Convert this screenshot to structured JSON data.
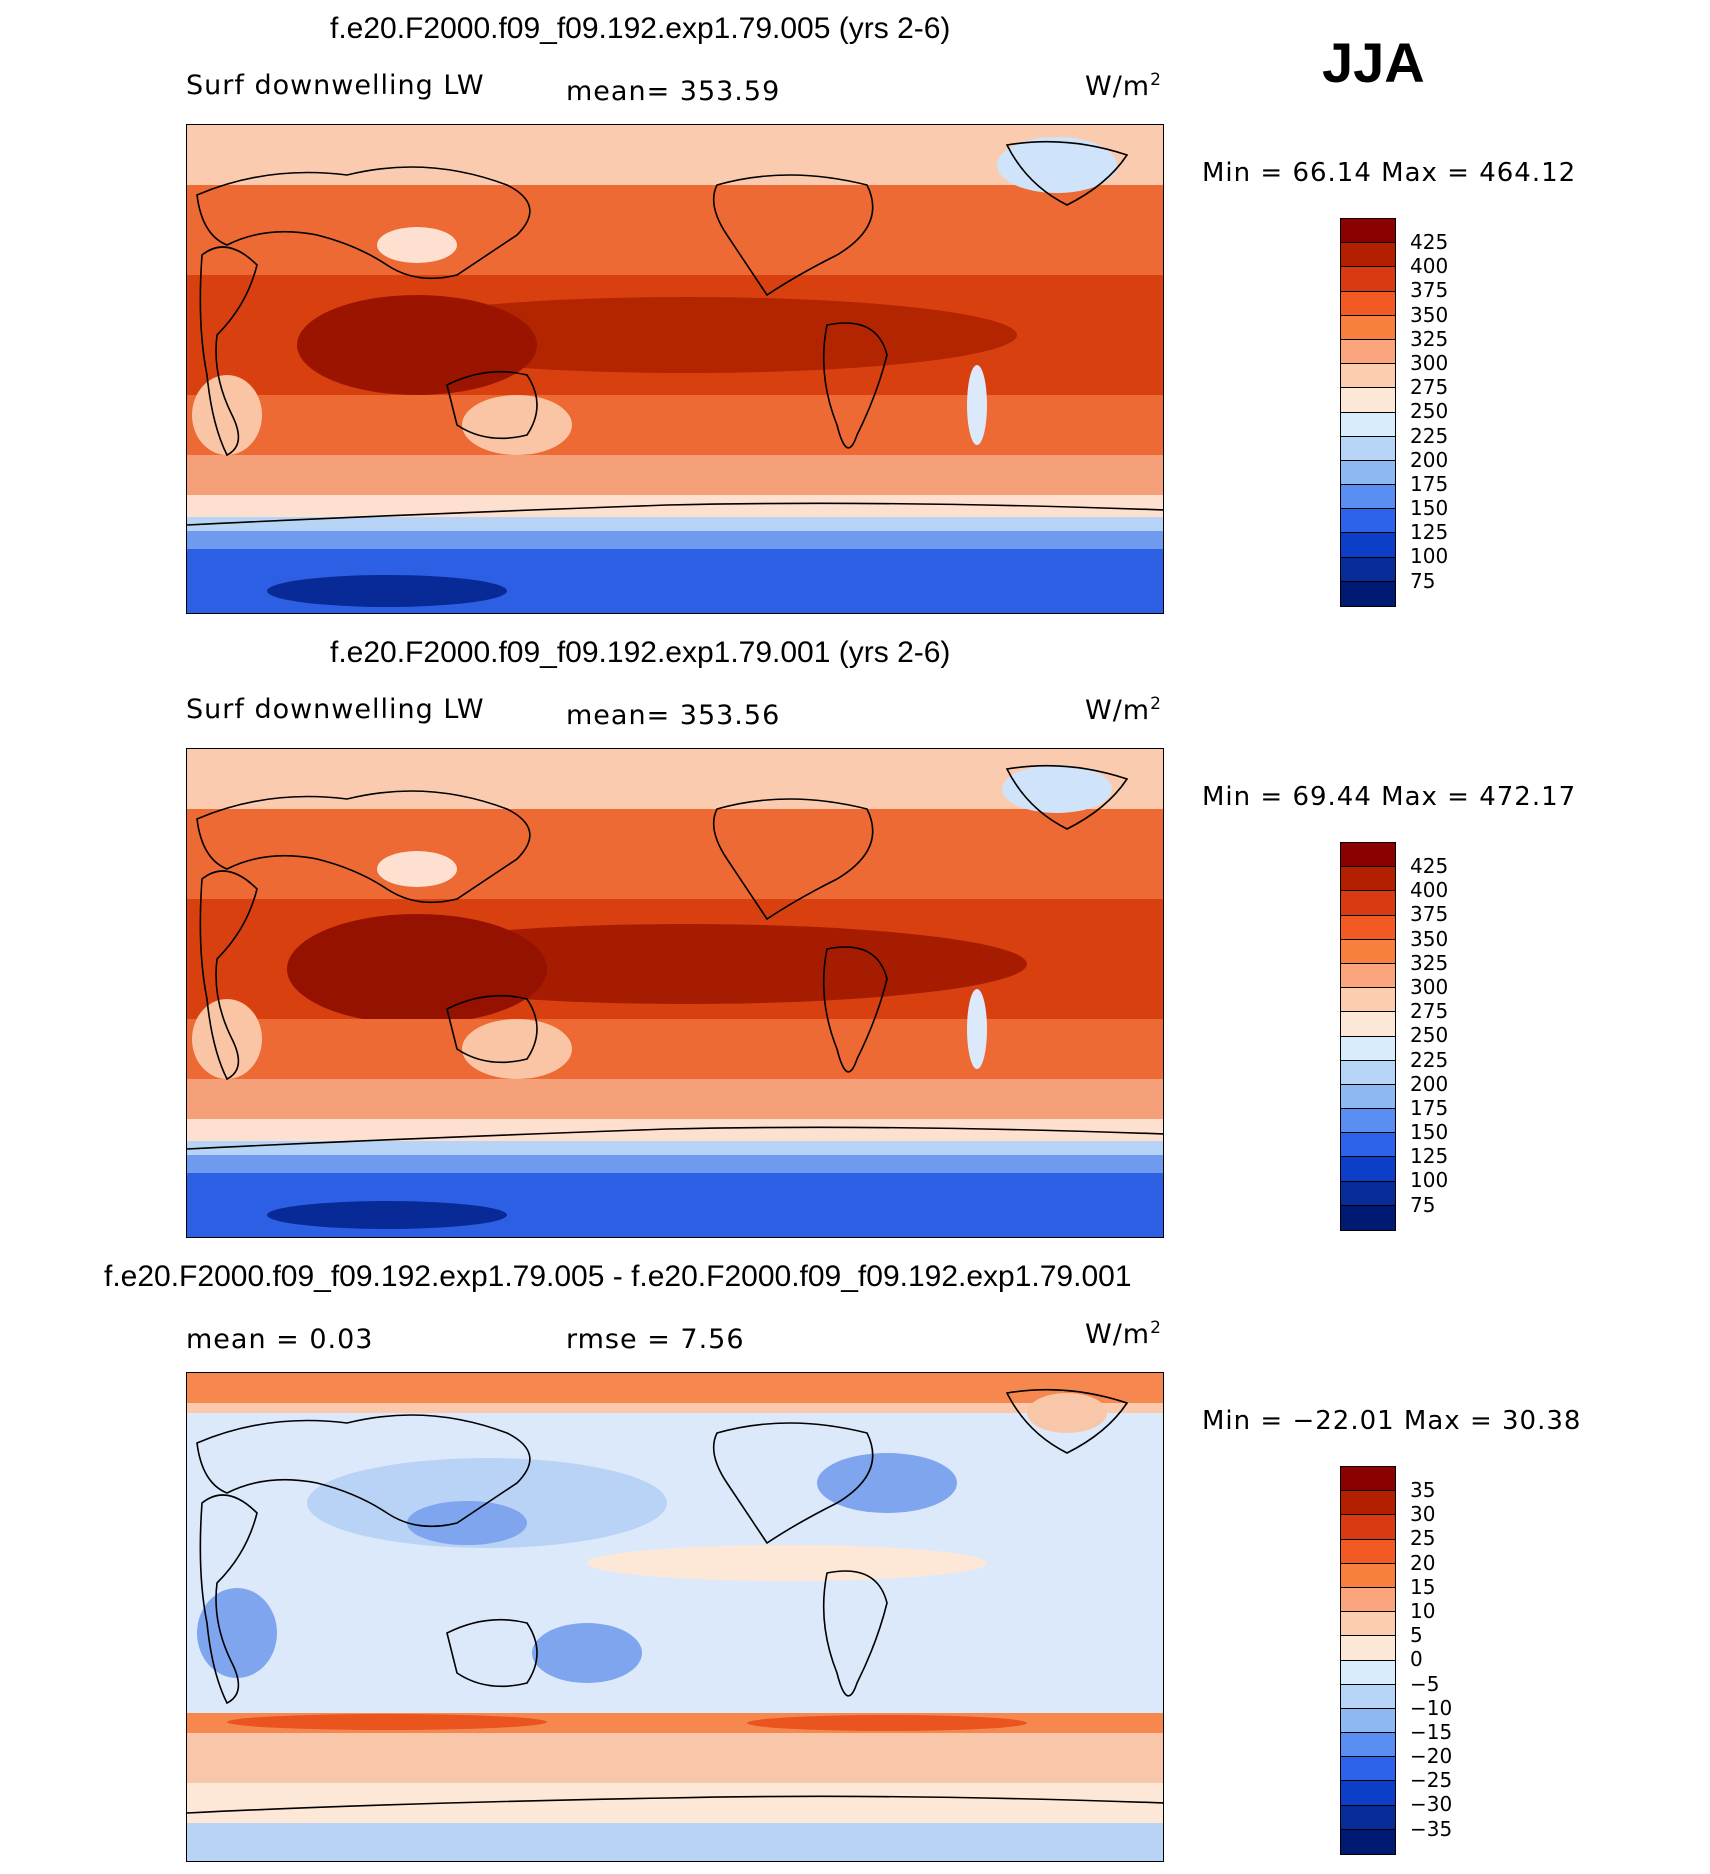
{
  "season": "JJA",
  "panels": [
    {
      "title": "f.e20.F2000.f09_f09.192.exp1.79.005 (yrs 2-6)",
      "variable": "Surf downwelling LW",
      "stat1": "mean= 353.59",
      "stat2": "",
      "units": "W/m",
      "units_sup": "2",
      "minmax": "Min =   66.14 Max = 464.12",
      "colorbar": {
        "labels": [
          "425",
          "400",
          "375",
          "350",
          "325",
          "300",
          "275",
          "250",
          "225",
          "200",
          "175",
          "150",
          "125",
          "100",
          "75"
        ],
        "colors": [
          "#8b0000",
          "#b22000",
          "#d83a12",
          "#f25a24",
          "#f8803f",
          "#fba57f",
          "#fdcdb0",
          "#fde8d8",
          "#d9ecfb",
          "#b7d6f7",
          "#8db8f2",
          "#5a8ef0",
          "#2d62ea",
          "#0d3ec8",
          "#082c9a",
          "#001a73"
        ]
      },
      "palette": [
        "#f4b799",
        "#ee5b2a",
        "#c8330a",
        "#8d0b00",
        "#fde0cf",
        "#d8eafb",
        "#8fb8f2",
        "#2f63e6",
        "#052d9f"
      ]
    },
    {
      "title": "f.e20.F2000.f09_f09.192.exp1.79.001 (yrs 2-6)",
      "variable": "Surf downwelling LW",
      "stat1": "mean= 353.56",
      "stat2": "",
      "units": "W/m",
      "units_sup": "2",
      "minmax": "Min =   69.44 Max = 472.17",
      "colorbar": {
        "labels": [
          "425",
          "400",
          "375",
          "350",
          "325",
          "300",
          "275",
          "250",
          "225",
          "200",
          "175",
          "150",
          "125",
          "100",
          "75"
        ],
        "colors": [
          "#8b0000",
          "#b22000",
          "#d83a12",
          "#f25a24",
          "#f8803f",
          "#fba57f",
          "#fdcdb0",
          "#fde8d8",
          "#d9ecfb",
          "#b7d6f7",
          "#8db8f2",
          "#5a8ef0",
          "#2d62ea",
          "#0d3ec8",
          "#082c9a",
          "#001a73"
        ]
      },
      "palette": [
        "#f4b799",
        "#ee5b2a",
        "#c8330a",
        "#8d0b00",
        "#fde0cf",
        "#d8eafb",
        "#8fb8f2",
        "#2f63e6",
        "#052d9f"
      ]
    },
    {
      "title": "f.e20.F2000.f09_f09.192.exp1.79.005 - f.e20.F2000.f09_f09.192.exp1.79.001",
      "variable": "",
      "stat1": "mean =    0.03",
      "stat2": "rmse =    7.56",
      "units": "W/m",
      "units_sup": "2",
      "minmax": "Min = −22.01 Max =   30.38",
      "colorbar": {
        "labels": [
          "35",
          "30",
          "25",
          "20",
          "15",
          "10",
          "5",
          "0",
          "−5",
          "−10",
          "−15",
          "−20",
          "−25",
          "−30",
          "−35"
        ],
        "colors": [
          "#8b0000",
          "#b22000",
          "#d83a12",
          "#f25a24",
          "#f8803f",
          "#fba57f",
          "#fdcdb0",
          "#fde8d8",
          "#d9ecfb",
          "#b7d6f7",
          "#8db8f2",
          "#5a8ef0",
          "#2d62ea",
          "#0d3ec8",
          "#082c9a",
          "#001a73"
        ]
      },
      "palette": [
        "#dce9fb",
        "#b9d3f6",
        "#f8c6a9",
        "#f6874f",
        "#e9541f",
        "#7fa5ee",
        "#4a7fe8",
        "#fde8d8",
        "#cfe2f9"
      ]
    }
  ]
}
